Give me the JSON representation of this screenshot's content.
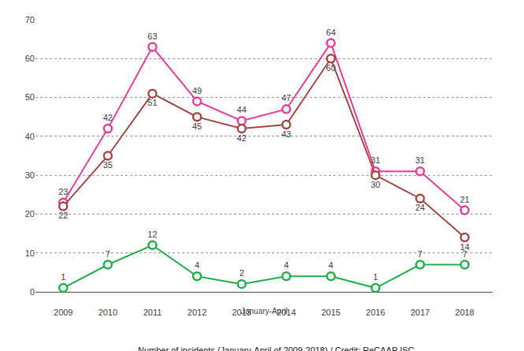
{
  "chart_data": {
    "type": "line",
    "categories": [
      "2009",
      "2010",
      "2011",
      "2012",
      "2013",
      "2014",
      "2015",
      "2016",
      "2017",
      "2018"
    ],
    "series": [
      {
        "color": "#e8409a",
        "values": [
          23,
          42,
          63,
          49,
          44,
          47,
          64,
          31,
          31,
          21
        ]
      },
      {
        "color": "#a84a4a",
        "values": [
          22,
          35,
          51,
          45,
          42,
          43,
          60,
          30,
          24,
          14
        ]
      },
      {
        "color": "#22b24a",
        "values": [
          1,
          7,
          12,
          4,
          2,
          4,
          4,
          1,
          7,
          7
        ]
      }
    ],
    "ylim": [
      0,
      70
    ],
    "yticks": [
      0,
      10,
      20,
      30,
      40,
      50,
      60,
      70
    ],
    "grid": true,
    "data_labels": true,
    "marker": "circle",
    "annotations": [
      "January-April",
      "Number of incidents (January-April of 2009-2018) / Credit: ReCAAP ISC"
    ]
  }
}
